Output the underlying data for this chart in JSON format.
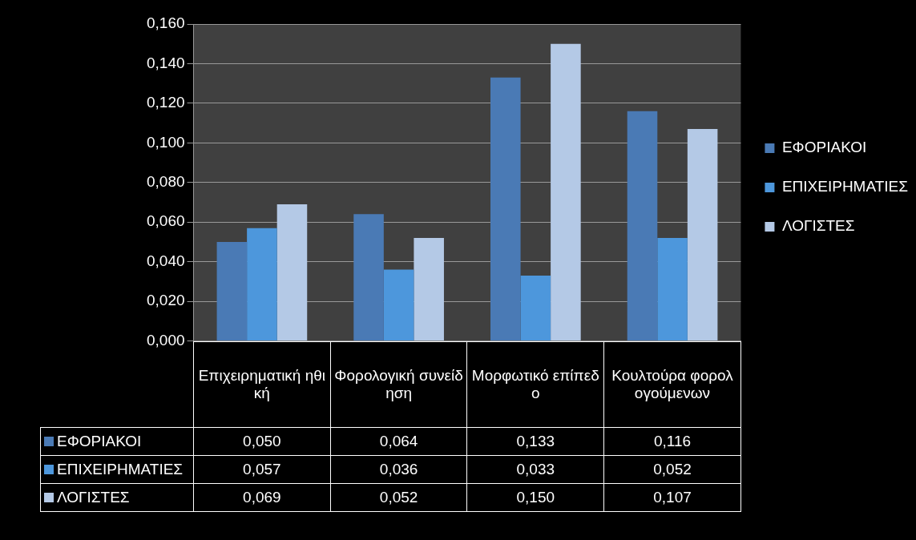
{
  "chart_data": {
    "type": "bar",
    "categories": [
      "Επιχειρηματική ηθική",
      "Φορολογική συνείδηση",
      "Μορφωτικό επίπεδο",
      "Κουλτούρα φορολογούμενων"
    ],
    "series": [
      {
        "name": "ΕΦΟΡΙΑΚΟΙ",
        "color": "#4a7ab5",
        "values": [
          0.05,
          0.064,
          0.133,
          0.116
        ],
        "value_labels": [
          "0,050",
          "0,064",
          "0,133",
          "0,116"
        ]
      },
      {
        "name": "ΕΠΙΧΕΙΡΗΜΑΤΙΕΣ",
        "color": "#4d97dc",
        "values": [
          0.057,
          0.036,
          0.033,
          0.052
        ],
        "value_labels": [
          "0,057",
          "0,036",
          "0,033",
          "0,052"
        ]
      },
      {
        "name": "ΛΟΓΙΣΤΕΣ",
        "color": "#b4c9e6",
        "values": [
          0.069,
          0.052,
          0.15,
          0.107
        ],
        "value_labels": [
          "0,069",
          "0,052",
          "0,150",
          "0,107"
        ]
      }
    ],
    "ylim": [
      0,
      0.16
    ],
    "yticks": [
      {
        "value": 0,
        "label": "0,000"
      },
      {
        "value": 0.02,
        "label": "0,020"
      },
      {
        "value": 0.04,
        "label": "0,040"
      },
      {
        "value": 0.06,
        "label": "0,060"
      },
      {
        "value": 0.08,
        "label": "0,080"
      },
      {
        "value": 0.1,
        "label": "0,100"
      },
      {
        "value": 0.12,
        "label": "0,120"
      },
      {
        "value": 0.14,
        "label": "0,140"
      },
      {
        "value": 0.16,
        "label": "0,160"
      }
    ],
    "grid": "y",
    "legend": "right",
    "tick_labels": "y"
  }
}
